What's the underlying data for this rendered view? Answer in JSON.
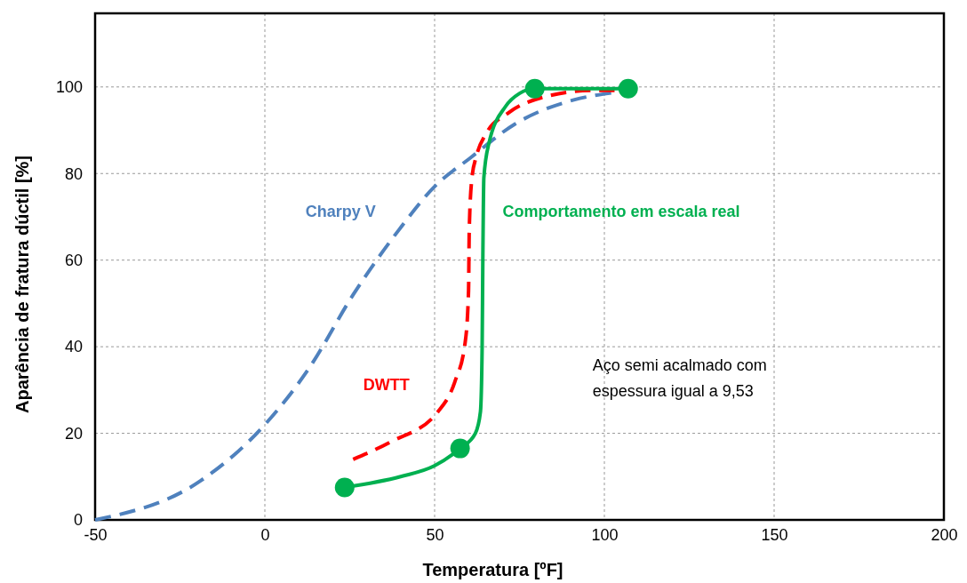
{
  "chart_data": {
    "type": "line",
    "xlabel": "Temperatura  [ºF]",
    "ylabel": "Aparência de fratura dúctil  [%]",
    "xlim": [
      -50,
      200
    ],
    "xticks": [
      -50,
      0,
      50,
      100,
      150,
      200
    ],
    "ylim": [
      0,
      117
    ],
    "yticks": [
      0,
      20,
      40,
      60,
      80,
      100
    ],
    "grid": true,
    "series": [
      {
        "name": "Charpy V",
        "color": "#4f81bd",
        "line_style": "dashed",
        "marker": "none",
        "x": [
          -50,
          -19,
          0,
          13,
          26,
          39.5,
          50,
          60.5,
          73.6,
          91,
          102
        ],
        "values": [
          0,
          9,
          22,
          35,
          52,
          67,
          77,
          83.6,
          91.4,
          97,
          98.6
        ]
      },
      {
        "name": "DWTT",
        "color": "#ff0000",
        "line_style": "dashed",
        "marker": "none",
        "x": [
          26,
          37,
          51,
          56,
          59,
          60,
          60.2,
          61,
          62.3,
          65,
          71.7,
          81.4,
          97,
          103
        ],
        "values": [
          14,
          18,
          25,
          32,
          41,
          53,
          67,
          79,
          84,
          89,
          94,
          97.5,
          99.2,
          99.2
        ]
      },
      {
        "name": "Comportamento em escala real",
        "color": "#00b050",
        "line_style": "solid",
        "marker": "none",
        "x": [
          23.5,
          40,
          50,
          57.5,
          62,
          63.5,
          64,
          64.2,
          64.5,
          66,
          70.9,
          75,
          79.5,
          107
        ],
        "values": [
          7.5,
          10,
          12.5,
          16.5,
          20,
          25,
          40,
          60,
          79,
          87,
          95.5,
          98.5,
          99.6,
          99.6
        ]
      },
      {
        "type": "scatter",
        "color": "#00b050",
        "marker": "circle",
        "x": [
          23.5,
          57.5,
          79.5,
          107
        ],
        "values": [
          7.5,
          16.5,
          99.6,
          99.6
        ]
      }
    ],
    "annotations": [
      "Aço semi acalmado com\nespessura igual a 9,53"
    ]
  }
}
